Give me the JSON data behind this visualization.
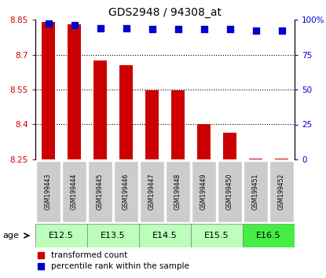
{
  "title": "GDS2948 / 94308_at",
  "samples": [
    "GSM199443",
    "GSM199444",
    "GSM199445",
    "GSM199446",
    "GSM199447",
    "GSM199448",
    "GSM199449",
    "GSM199450",
    "GSM199451",
    "GSM199452"
  ],
  "transformed_counts": [
    8.84,
    8.83,
    8.675,
    8.655,
    8.545,
    8.545,
    8.4,
    8.365,
    8.255,
    8.255
  ],
  "percentile_ranks": [
    97,
    96,
    94,
    94,
    93,
    93,
    93,
    93,
    92,
    92
  ],
  "ylim_left": [
    8.25,
    8.85
  ],
  "ylim_right": [
    0,
    100
  ],
  "yticks_left": [
    8.25,
    8.4,
    8.55,
    8.7,
    8.85
  ],
  "yticks_right": [
    0,
    25,
    50,
    75,
    100
  ],
  "ytick_labels_right": [
    "0",
    "25",
    "50",
    "75",
    "100%"
  ],
  "age_extents": [
    [
      0,
      1,
      "E12.5",
      "#bbffbb"
    ],
    [
      2,
      3,
      "E13.5",
      "#bbffbb"
    ],
    [
      4,
      5,
      "E14.5",
      "#bbffbb"
    ],
    [
      6,
      7,
      "E15.5",
      "#bbffbb"
    ],
    [
      8,
      9,
      "E16.5",
      "#44ee44"
    ]
  ],
  "bar_color": "#cc0000",
  "dot_color": "#0000cc",
  "tick_color_left": "#cc0000",
  "tick_color_right": "#0000cc",
  "sample_box_color": "#cccccc",
  "bar_width": 0.5,
  "dot_size": 30,
  "legend_items": [
    {
      "label": "transformed count",
      "color": "#cc0000"
    },
    {
      "label": "percentile rank within the sample",
      "color": "#0000cc"
    }
  ]
}
